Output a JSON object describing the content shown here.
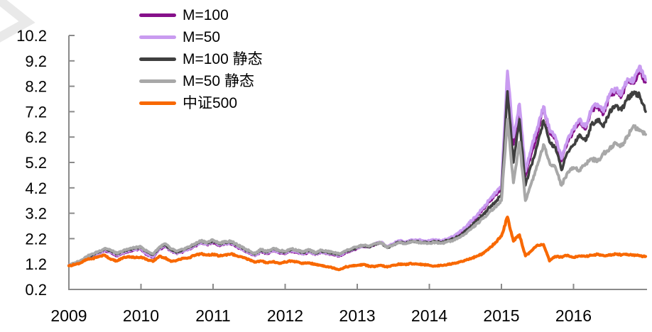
{
  "watermark_color": "#E9E9E9",
  "chart_data": {
    "type": "line",
    "title": "",
    "grid": false,
    "legend_position": "top-left",
    "axis_color": "#8A8A8A",
    "text_color": "#000000",
    "x_axis": {
      "tick_labels": [
        "2009",
        "2010",
        "2011",
        "2012",
        "2013",
        "2014",
        "2015",
        "2016"
      ],
      "start_year": 2009,
      "samples_per_year": 12
    },
    "y_axis": {
      "range": [
        0.2,
        10.2
      ],
      "tick_values": [
        0.2,
        1.2,
        2.2,
        3.2,
        4.2,
        5.2,
        6.2,
        7.2,
        8.2,
        9.2,
        10.2
      ],
      "tick_labels": [
        "0.2",
        "1.2",
        "2.2",
        "3.2",
        "4.2",
        "5.2",
        "6.2",
        "7.2",
        "8.2",
        "9.2",
        "10.2"
      ]
    },
    "series": [
      {
        "id": "m100",
        "name": "M=100",
        "color": "#86108A",
        "values": [
          1.15,
          1.2,
          1.28,
          1.42,
          1.52,
          1.61,
          1.72,
          1.64,
          1.52,
          1.62,
          1.7,
          1.75,
          1.78,
          1.55,
          1.45,
          1.75,
          1.9,
          1.7,
          1.6,
          1.68,
          1.78,
          1.9,
          2.02,
          1.95,
          2.05,
          1.92,
          1.98,
          2.0,
          1.86,
          1.74,
          1.62,
          1.52,
          1.68,
          1.6,
          1.72,
          1.64,
          1.6,
          1.7,
          1.64,
          1.58,
          1.66,
          1.56,
          1.64,
          1.6,
          1.56,
          1.5,
          1.63,
          1.71,
          1.82,
          1.89,
          1.85,
          1.98,
          2.04,
          1.85,
          1.98,
          2.1,
          2.04,
          2.14,
          2.12,
          2.1,
          2.08,
          2.14,
          2.09,
          2.17,
          2.26,
          2.41,
          2.61,
          2.86,
          3.1,
          3.36,
          3.65,
          3.92,
          4.15,
          8.45,
          5.9,
          7.25,
          4.65,
          5.55,
          6.35,
          7.3,
          6.4,
          6.1,
          5.25,
          6.0,
          6.4,
          6.8,
          6.5,
          7.2,
          7.4,
          7.1,
          7.8,
          8.0,
          7.8,
          8.4,
          8.3,
          8.8,
          8.35
        ]
      },
      {
        "id": "m50",
        "name": "M=50",
        "color": "#C99BF0",
        "values": [
          1.15,
          1.21,
          1.3,
          1.44,
          1.54,
          1.63,
          1.75,
          1.67,
          1.55,
          1.65,
          1.73,
          1.78,
          1.81,
          1.58,
          1.48,
          1.78,
          1.93,
          1.73,
          1.63,
          1.71,
          1.81,
          1.93,
          2.05,
          1.98,
          2.08,
          1.95,
          2.01,
          2.03,
          1.89,
          1.77,
          1.65,
          1.55,
          1.71,
          1.63,
          1.75,
          1.67,
          1.63,
          1.73,
          1.67,
          1.61,
          1.69,
          1.59,
          1.67,
          1.63,
          1.59,
          1.53,
          1.66,
          1.74,
          1.84,
          1.91,
          1.87,
          2.0,
          2.06,
          1.87,
          2.0,
          2.12,
          2.06,
          2.16,
          2.14,
          2.12,
          2.1,
          2.16,
          2.11,
          2.19,
          2.28,
          2.44,
          2.65,
          2.9,
          3.15,
          3.42,
          3.72,
          4.0,
          4.25,
          8.8,
          6.2,
          7.5,
          4.85,
          5.8,
          6.6,
          7.4,
          6.5,
          6.2,
          5.35,
          6.1,
          6.5,
          6.9,
          6.6,
          7.3,
          7.5,
          7.2,
          7.9,
          8.1,
          7.9,
          8.5,
          8.4,
          9.0,
          8.45
        ]
      },
      {
        "id": "m100-static",
        "name": "M=100 静态",
        "color": "#3F3F3F",
        "values": [
          1.14,
          1.23,
          1.32,
          1.47,
          1.57,
          1.67,
          1.79,
          1.71,
          1.59,
          1.69,
          1.77,
          1.82,
          1.85,
          1.67,
          1.57,
          1.82,
          1.97,
          1.77,
          1.67,
          1.75,
          1.85,
          1.97,
          2.09,
          2.02,
          2.12,
          1.99,
          2.05,
          2.07,
          1.93,
          1.81,
          1.69,
          1.59,
          1.75,
          1.67,
          1.79,
          1.71,
          1.67,
          1.77,
          1.71,
          1.65,
          1.73,
          1.63,
          1.71,
          1.67,
          1.63,
          1.57,
          1.69,
          1.77,
          1.86,
          1.92,
          1.88,
          1.99,
          2.03,
          1.84,
          1.96,
          2.06,
          2.01,
          2.1,
          2.08,
          2.06,
          2.04,
          2.09,
          2.05,
          2.12,
          2.19,
          2.31,
          2.49,
          2.71,
          2.93,
          3.16,
          3.43,
          3.66,
          3.92,
          8.0,
          5.2,
          6.9,
          4.3,
          5.1,
          5.9,
          6.85,
          6.0,
          5.8,
          4.9,
          5.6,
          5.9,
          6.3,
          6.05,
          6.7,
          6.9,
          6.6,
          7.2,
          7.45,
          7.25,
          7.75,
          7.9,
          7.85,
          7.2
        ]
      },
      {
        "id": "m50-static",
        "name": "M=50 静态",
        "color": "#A8A8A8",
        "values": [
          1.15,
          1.25,
          1.35,
          1.5,
          1.6,
          1.7,
          1.82,
          1.74,
          1.62,
          1.72,
          1.8,
          1.85,
          1.88,
          1.7,
          1.6,
          1.85,
          2.0,
          1.8,
          1.7,
          1.78,
          1.88,
          2.0,
          2.12,
          2.05,
          2.15,
          2.02,
          2.08,
          2.1,
          1.96,
          1.84,
          1.72,
          1.62,
          1.78,
          1.7,
          1.82,
          1.74,
          1.7,
          1.8,
          1.74,
          1.68,
          1.76,
          1.66,
          1.74,
          1.7,
          1.66,
          1.6,
          1.72,
          1.8,
          1.88,
          1.94,
          1.9,
          2.0,
          2.04,
          1.85,
          1.96,
          2.05,
          2.0,
          2.08,
          2.06,
          2.04,
          2.02,
          2.06,
          2.02,
          2.08,
          2.14,
          2.24,
          2.4,
          2.6,
          2.8,
          3.0,
          3.25,
          3.45,
          3.7,
          6.9,
          4.4,
          6.0,
          3.7,
          4.4,
          5.1,
          5.9,
          5.2,
          5.0,
          4.3,
          4.8,
          5.0,
          4.9,
          5.15,
          5.35,
          5.25,
          5.55,
          5.75,
          5.95,
          5.85,
          6.25,
          6.65,
          6.45,
          6.3
        ]
      },
      {
        "id": "csi500",
        "name": "中证500",
        "color": "#F86800",
        "values": [
          1.13,
          1.18,
          1.25,
          1.38,
          1.42,
          1.5,
          1.55,
          1.38,
          1.32,
          1.45,
          1.5,
          1.45,
          1.48,
          1.38,
          1.3,
          1.5,
          1.45,
          1.3,
          1.35,
          1.42,
          1.45,
          1.55,
          1.6,
          1.55,
          1.58,
          1.52,
          1.56,
          1.6,
          1.52,
          1.45,
          1.38,
          1.28,
          1.32,
          1.25,
          1.3,
          1.22,
          1.28,
          1.32,
          1.28,
          1.22,
          1.25,
          1.18,
          1.15,
          1.1,
          1.05,
          0.98,
          1.08,
          1.12,
          1.15,
          1.18,
          1.12,
          1.1,
          1.15,
          1.08,
          1.15,
          1.2,
          1.18,
          1.22,
          1.2,
          1.18,
          1.15,
          1.12,
          1.15,
          1.18,
          1.22,
          1.28,
          1.35,
          1.42,
          1.52,
          1.62,
          1.82,
          2.05,
          2.3,
          3.05,
          2.1,
          2.35,
          1.52,
          1.72,
          1.95,
          1.97,
          1.32,
          1.5,
          1.48,
          1.55,
          1.46,
          1.52,
          1.5,
          1.55,
          1.58,
          1.53,
          1.55,
          1.6,
          1.56,
          1.58,
          1.56,
          1.52,
          1.5
        ]
      }
    ]
  }
}
